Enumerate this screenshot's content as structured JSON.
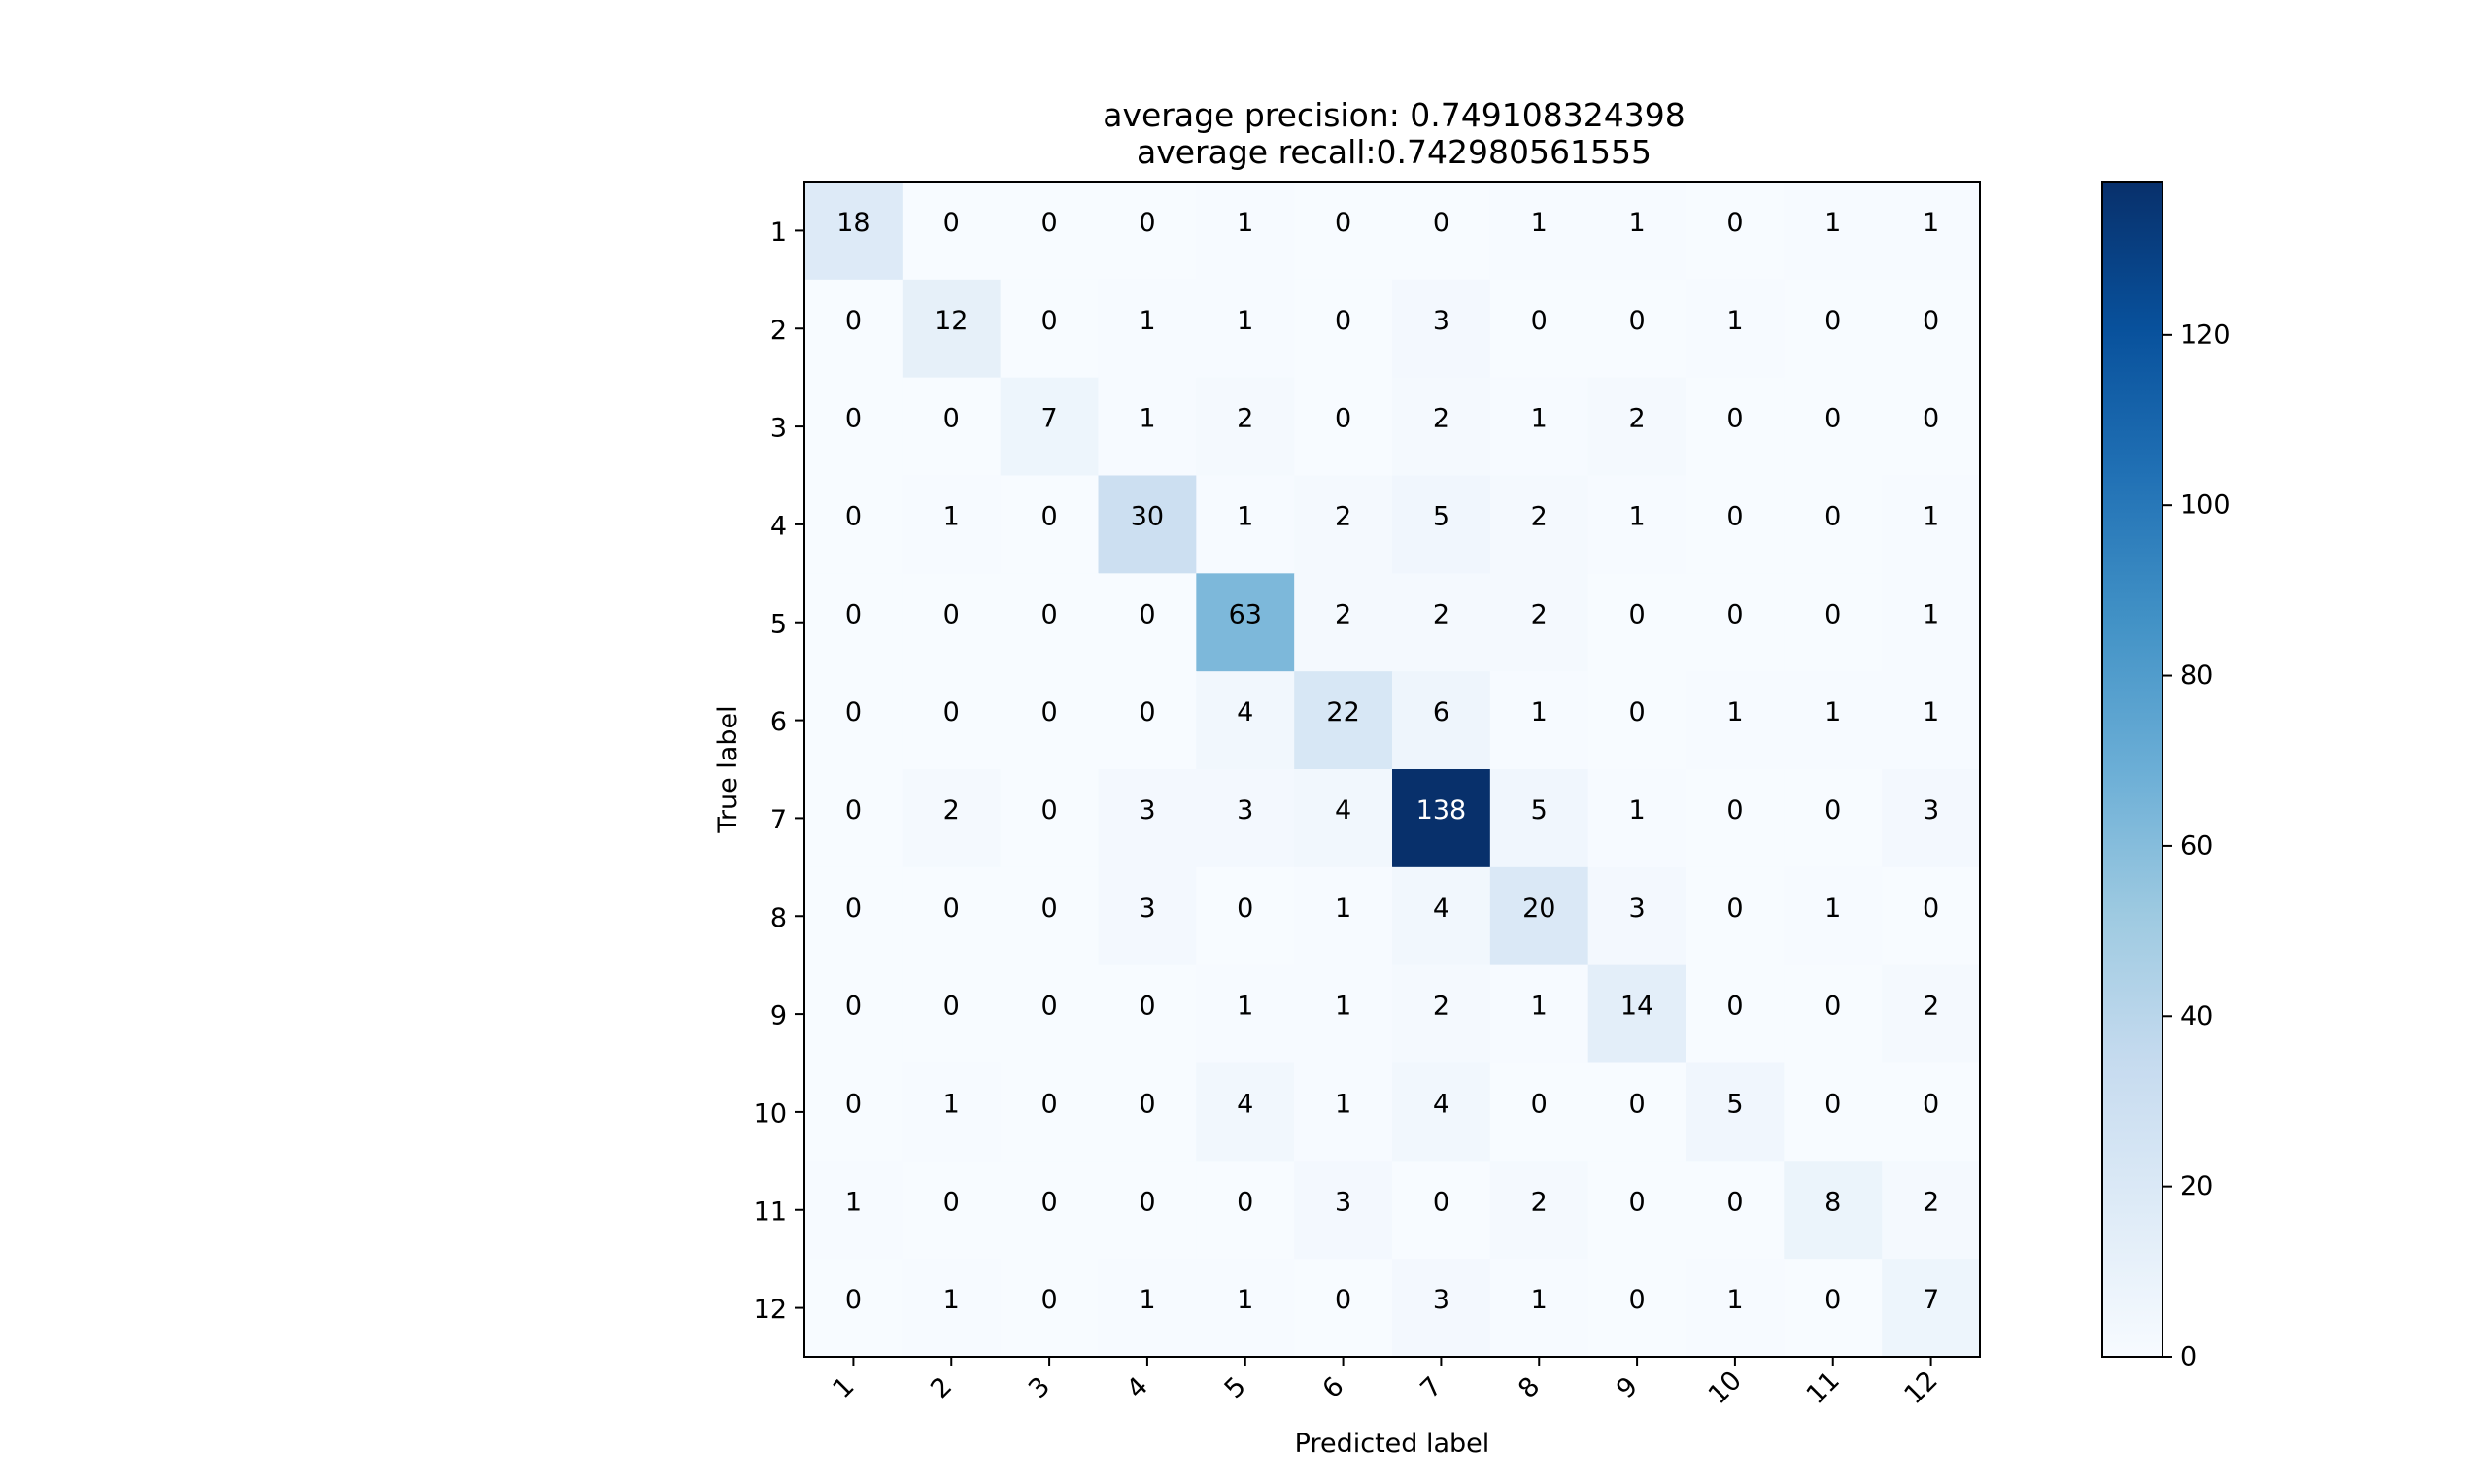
{
  "chart_data": {
    "type": "heatmap",
    "title_line1": "average precision: 0.749108324398",
    "title_line2": "average recall:0.742980561555",
    "xlabel": "Predicted label",
    "ylabel": "True label",
    "x_categories": [
      "1",
      "2",
      "3",
      "4",
      "5",
      "6",
      "7",
      "8",
      "9",
      "10",
      "11",
      "12"
    ],
    "y_categories": [
      "1",
      "2",
      "3",
      "4",
      "5",
      "6",
      "7",
      "8",
      "9",
      "10",
      "11",
      "12"
    ],
    "values": [
      [
        18,
        0,
        0,
        0,
        1,
        0,
        0,
        1,
        1,
        0,
        1,
        1
      ],
      [
        0,
        12,
        0,
        1,
        1,
        0,
        3,
        0,
        0,
        1,
        0,
        0
      ],
      [
        0,
        0,
        7,
        1,
        2,
        0,
        2,
        1,
        2,
        0,
        0,
        0
      ],
      [
        0,
        1,
        0,
        30,
        1,
        2,
        5,
        2,
        1,
        0,
        0,
        1
      ],
      [
        0,
        0,
        0,
        0,
        63,
        2,
        2,
        2,
        0,
        0,
        0,
        1
      ],
      [
        0,
        0,
        0,
        0,
        4,
        22,
        6,
        1,
        0,
        1,
        1,
        1
      ],
      [
        0,
        2,
        0,
        3,
        3,
        4,
        138,
        5,
        1,
        0,
        0,
        3
      ],
      [
        0,
        0,
        0,
        3,
        0,
        1,
        4,
        20,
        3,
        0,
        1,
        0
      ],
      [
        0,
        0,
        0,
        0,
        1,
        1,
        2,
        1,
        14,
        0,
        0,
        2
      ],
      [
        0,
        1,
        0,
        0,
        4,
        1,
        4,
        0,
        0,
        5,
        0,
        0
      ],
      [
        1,
        0,
        0,
        0,
        0,
        3,
        0,
        2,
        0,
        0,
        8,
        2
      ],
      [
        0,
        1,
        0,
        1,
        1,
        0,
        3,
        1,
        0,
        1,
        0,
        7
      ]
    ],
    "colormap": "Blues",
    "colorbar_range": [
      0,
      138
    ],
    "colorbar_ticks": [
      0,
      20,
      40,
      60,
      80,
      100,
      120
    ],
    "text_color_light": "#ffffff",
    "text_color_dark": "#000000"
  }
}
